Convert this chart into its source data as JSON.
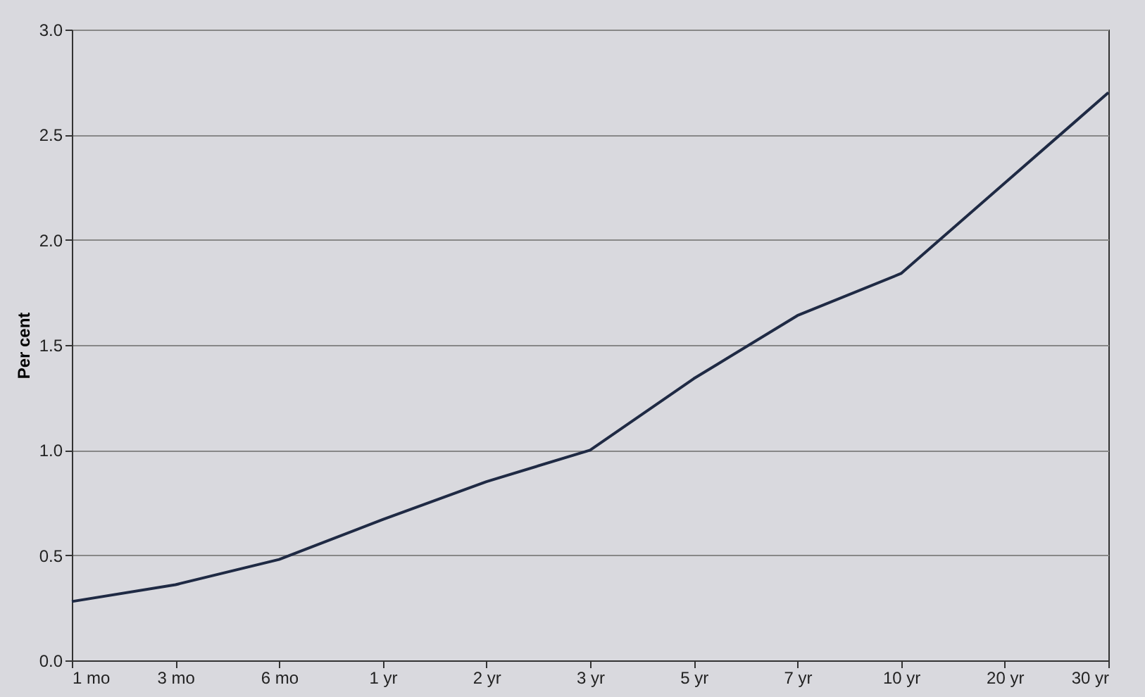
{
  "chart_data": {
    "type": "line",
    "ylabel": "Per cent",
    "categories": [
      "1 mo",
      "3 mo",
      "6 mo",
      "1 yr",
      "2 yr",
      "3 yr",
      "5 yr",
      "7 yr",
      "10 yr",
      "20 yr",
      "30 yr"
    ],
    "series": [
      {
        "color": "#1f2a44",
        "values": [
          0.28,
          0.36,
          0.48,
          0.67,
          0.85,
          1.0,
          1.34,
          1.64,
          1.84,
          2.27,
          2.7
        ]
      }
    ],
    "ylim": [
      0,
      3.0
    ],
    "yticks": [
      {
        "value": 0,
        "label": "0.0"
      },
      0.5,
      {
        "value": 1,
        "label": "1.0"
      },
      1.5,
      {
        "value": 2,
        "label": "2.0"
      },
      2.5,
      {
        "value": 3,
        "label": "3.0"
      }
    ],
    "grid": "y",
    "marker": "none",
    "line_style": "solid"
  }
}
